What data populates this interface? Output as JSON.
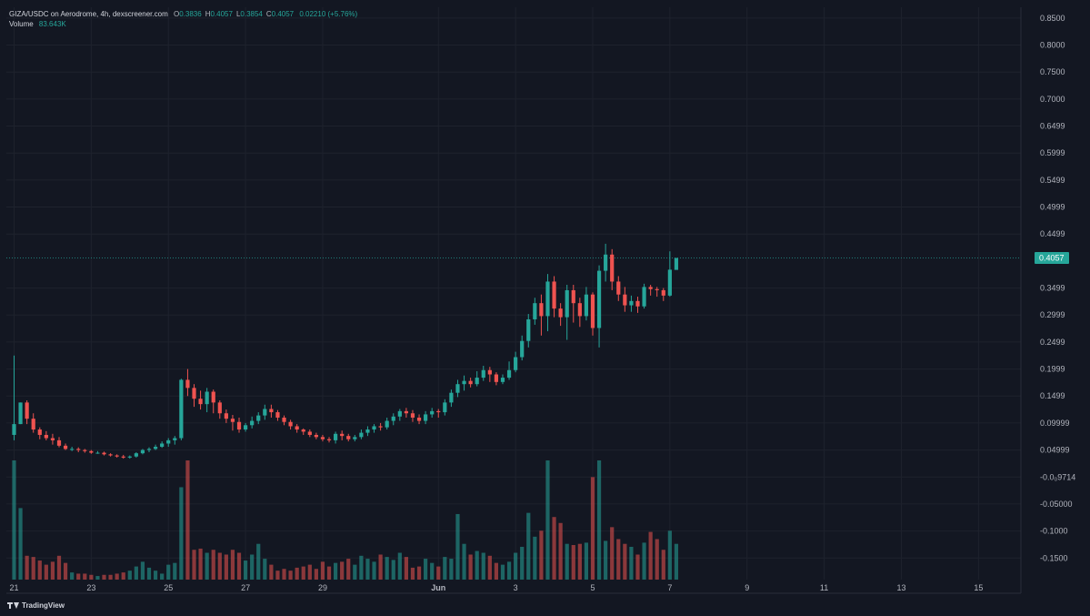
{
  "header": {
    "title": "GIZA/USDC on Aerodrome, 4h, dexscreener.com",
    "ohlc": [
      {
        "key": "O",
        "value": "0.3836"
      },
      {
        "key": "H",
        "value": "0.4057"
      },
      {
        "key": "L",
        "value": "0.3854"
      },
      {
        "key": "C",
        "value": "0.4057"
      }
    ],
    "change": "0.02210 (+5.76%)",
    "volume_label": "Volume",
    "volume_value": "83.643K"
  },
  "branding": {
    "name": "TradingView"
  },
  "colors": {
    "up": "#26a69a",
    "down": "#ef5350",
    "background": "#131722",
    "grid": "#1e222d",
    "text": "#b2b5be"
  },
  "chart_data": {
    "type": "candlestick",
    "timeframe": "4h",
    "last_price": "0.4057",
    "y_tick_labels": [
      "0.8500",
      "0.8000",
      "0.7500",
      "0.7000",
      "0.6499",
      "0.5999",
      "0.5499",
      "0.4999",
      "0.4499",
      "0.3499",
      "0.2999",
      "0.2499",
      "0.1999",
      "0.1499",
      "0.09999",
      "0.04999",
      "-0.0₀9714",
      "-0.05000",
      "-0.1000",
      "-0.1500"
    ],
    "y_tick_values": [
      0.85,
      0.8,
      0.75,
      0.7,
      0.65,
      0.6,
      0.55,
      0.5,
      0.45,
      0.35,
      0.3,
      0.25,
      0.2,
      0.15,
      0.1,
      0.05,
      0.0,
      -0.05,
      -0.1,
      -0.15
    ],
    "ylim": [
      -0.19,
      0.87
    ],
    "x_ticks": [
      {
        "label": "21",
        "day": 21
      },
      {
        "label": "23",
        "day": 23
      },
      {
        "label": "25",
        "day": 25
      },
      {
        "label": "27",
        "day": 27
      },
      {
        "label": "29",
        "day": 29
      },
      {
        "label": "Jun",
        "day": 32
      },
      {
        "label": "3",
        "day": 34
      },
      {
        "label": "5",
        "day": 36
      },
      {
        "label": "7",
        "day": 38
      },
      {
        "label": "9",
        "day": 40
      },
      {
        "label": "11",
        "day": 42
      },
      {
        "label": "13",
        "day": 44
      },
      {
        "label": "15",
        "day": 46
      }
    ],
    "xlim_days": [
      20.8,
      47.1
    ],
    "start_day": 21.0,
    "candles": [
      [
        0.078,
        0.098,
        0.068,
        0.225,
        2.0
      ],
      [
        0.098,
        0.138,
        0.098,
        0.138,
        1.2
      ],
      [
        0.138,
        0.108,
        0.098,
        0.142,
        0.4
      ],
      [
        0.108,
        0.088,
        0.082,
        0.118,
        0.38
      ],
      [
        0.088,
        0.078,
        0.07,
        0.092,
        0.32
      ],
      [
        0.078,
        0.072,
        0.068,
        0.085,
        0.25
      ],
      [
        0.072,
        0.068,
        0.06,
        0.08,
        0.3
      ],
      [
        0.068,
        0.058,
        0.055,
        0.074,
        0.4
      ],
      [
        0.058,
        0.052,
        0.05,
        0.062,
        0.28
      ],
      [
        0.052,
        0.052,
        0.048,
        0.056,
        0.12
      ],
      [
        0.052,
        0.05,
        0.046,
        0.055,
        0.1
      ],
      [
        0.05,
        0.048,
        0.045,
        0.052,
        0.1
      ],
      [
        0.048,
        0.045,
        0.043,
        0.05,
        0.08
      ],
      [
        0.045,
        0.045,
        0.043,
        0.048,
        0.06
      ],
      [
        0.045,
        0.042,
        0.04,
        0.047,
        0.08
      ],
      [
        0.042,
        0.04,
        0.038,
        0.044,
        0.08
      ],
      [
        0.04,
        0.038,
        0.036,
        0.042,
        0.1
      ],
      [
        0.038,
        0.036,
        0.034,
        0.041,
        0.12
      ],
      [
        0.036,
        0.038,
        0.034,
        0.04,
        0.15
      ],
      [
        0.038,
        0.044,
        0.036,
        0.046,
        0.22
      ],
      [
        0.044,
        0.05,
        0.042,
        0.052,
        0.3
      ],
      [
        0.05,
        0.052,
        0.046,
        0.055,
        0.2
      ],
      [
        0.052,
        0.056,
        0.05,
        0.06,
        0.15
      ],
      [
        0.056,
        0.062,
        0.054,
        0.066,
        0.1
      ],
      [
        0.062,
        0.068,
        0.056,
        0.072,
        0.25
      ],
      [
        0.068,
        0.072,
        0.06,
        0.076,
        0.28
      ],
      [
        0.072,
        0.18,
        0.068,
        0.182,
        1.55
      ],
      [
        0.18,
        0.165,
        0.15,
        0.2,
        2.0
      ],
      [
        0.165,
        0.145,
        0.13,
        0.172,
        0.5
      ],
      [
        0.145,
        0.135,
        0.125,
        0.16,
        0.52
      ],
      [
        0.135,
        0.158,
        0.12,
        0.165,
        0.45
      ],
      [
        0.158,
        0.138,
        0.118,
        0.162,
        0.5
      ],
      [
        0.138,
        0.118,
        0.108,
        0.142,
        0.45
      ],
      [
        0.118,
        0.108,
        0.1,
        0.125,
        0.42
      ],
      [
        0.108,
        0.102,
        0.086,
        0.115,
        0.5
      ],
      [
        0.102,
        0.088,
        0.082,
        0.11,
        0.45
      ],
      [
        0.088,
        0.096,
        0.084,
        0.1,
        0.32
      ],
      [
        0.096,
        0.104,
        0.09,
        0.112,
        0.42
      ],
      [
        0.104,
        0.114,
        0.098,
        0.12,
        0.6
      ],
      [
        0.114,
        0.126,
        0.106,
        0.134,
        0.35
      ],
      [
        0.126,
        0.12,
        0.11,
        0.134,
        0.25
      ],
      [
        0.12,
        0.11,
        0.104,
        0.124,
        0.15
      ],
      [
        0.11,
        0.102,
        0.096,
        0.114,
        0.18
      ],
      [
        0.102,
        0.094,
        0.088,
        0.106,
        0.15
      ],
      [
        0.094,
        0.088,
        0.082,
        0.098,
        0.2
      ],
      [
        0.088,
        0.084,
        0.078,
        0.09,
        0.22
      ],
      [
        0.084,
        0.078,
        0.074,
        0.088,
        0.25
      ],
      [
        0.078,
        0.074,
        0.07,
        0.082,
        0.18
      ],
      [
        0.074,
        0.07,
        0.066,
        0.078,
        0.3
      ],
      [
        0.07,
        0.068,
        0.064,
        0.074,
        0.22
      ],
      [
        0.068,
        0.08,
        0.062,
        0.084,
        0.28
      ],
      [
        0.08,
        0.076,
        0.068,
        0.086,
        0.3
      ],
      [
        0.076,
        0.07,
        0.066,
        0.08,
        0.35
      ],
      [
        0.07,
        0.074,
        0.066,
        0.078,
        0.25
      ],
      [
        0.074,
        0.082,
        0.07,
        0.088,
        0.4
      ],
      [
        0.082,
        0.088,
        0.076,
        0.094,
        0.35
      ],
      [
        0.088,
        0.094,
        0.082,
        0.098,
        0.3
      ],
      [
        0.094,
        0.092,
        0.086,
        0.1,
        0.42
      ],
      [
        0.092,
        0.104,
        0.088,
        0.11,
        0.38
      ],
      [
        0.104,
        0.112,
        0.096,
        0.118,
        0.33
      ],
      [
        0.112,
        0.122,
        0.104,
        0.126,
        0.45
      ],
      [
        0.122,
        0.118,
        0.11,
        0.128,
        0.38
      ],
      [
        0.118,
        0.11,
        0.102,
        0.124,
        0.2
      ],
      [
        0.11,
        0.104,
        0.098,
        0.116,
        0.22
      ],
      [
        0.104,
        0.116,
        0.098,
        0.122,
        0.35
      ],
      [
        0.116,
        0.122,
        0.11,
        0.128,
        0.28
      ],
      [
        0.122,
        0.12,
        0.11,
        0.126,
        0.22
      ],
      [
        0.12,
        0.138,
        0.114,
        0.144,
        0.38
      ],
      [
        0.138,
        0.156,
        0.13,
        0.162,
        0.35
      ],
      [
        0.156,
        0.172,
        0.148,
        0.18,
        1.1
      ],
      [
        0.172,
        0.178,
        0.16,
        0.188,
        0.6
      ],
      [
        0.178,
        0.172,
        0.166,
        0.184,
        0.42
      ],
      [
        0.172,
        0.184,
        0.168,
        0.196,
        0.48
      ],
      [
        0.184,
        0.198,
        0.178,
        0.206,
        0.45
      ],
      [
        0.198,
        0.19,
        0.176,
        0.204,
        0.4
      ],
      [
        0.19,
        0.176,
        0.17,
        0.194,
        0.28
      ],
      [
        0.176,
        0.184,
        0.172,
        0.19,
        0.25
      ],
      [
        0.184,
        0.198,
        0.18,
        0.214,
        0.3
      ],
      [
        0.198,
        0.222,
        0.194,
        0.232,
        0.45
      ],
      [
        0.222,
        0.252,
        0.216,
        0.262,
        0.55
      ],
      [
        0.252,
        0.292,
        0.24,
        0.302,
        1.12
      ],
      [
        0.292,
        0.322,
        0.282,
        0.332,
        0.72
      ],
      [
        0.322,
        0.298,
        0.262,
        0.338,
        0.82
      ],
      [
        0.298,
        0.362,
        0.27,
        0.376,
        2.0
      ],
      [
        0.362,
        0.312,
        0.296,
        0.372,
        1.05
      ],
      [
        0.312,
        0.296,
        0.28,
        0.322,
        0.95
      ],
      [
        0.296,
        0.346,
        0.254,
        0.356,
        0.6
      ],
      [
        0.346,
        0.322,
        0.286,
        0.356,
        0.58
      ],
      [
        0.322,
        0.298,
        0.278,
        0.332,
        0.6
      ],
      [
        0.298,
        0.338,
        0.29,
        0.352,
        0.62
      ],
      [
        0.338,
        0.276,
        0.262,
        0.342,
        1.72
      ],
      [
        0.276,
        0.382,
        0.24,
        0.392,
        2.0
      ],
      [
        0.382,
        0.412,
        0.362,
        0.432,
        0.65
      ],
      [
        0.412,
        0.362,
        0.346,
        0.422,
        0.88
      ],
      [
        0.362,
        0.338,
        0.326,
        0.372,
        0.68
      ],
      [
        0.338,
        0.318,
        0.306,
        0.352,
        0.6
      ],
      [
        0.318,
        0.326,
        0.306,
        0.336,
        0.55
      ],
      [
        0.326,
        0.316,
        0.304,
        0.334,
        0.42
      ],
      [
        0.316,
        0.352,
        0.312,
        0.358,
        0.62
      ],
      [
        0.352,
        0.348,
        0.336,
        0.356,
        0.8
      ],
      [
        0.348,
        0.346,
        0.334,
        0.352,
        0.68
      ],
      [
        0.346,
        0.336,
        0.326,
        0.35,
        0.5
      ],
      [
        0.336,
        0.384,
        0.334,
        0.418,
        0.82
      ],
      [
        0.3836,
        0.4057,
        0.3854,
        0.4057,
        0.6
      ]
    ],
    "volume_scale_note": "",
    "grid": true
  }
}
